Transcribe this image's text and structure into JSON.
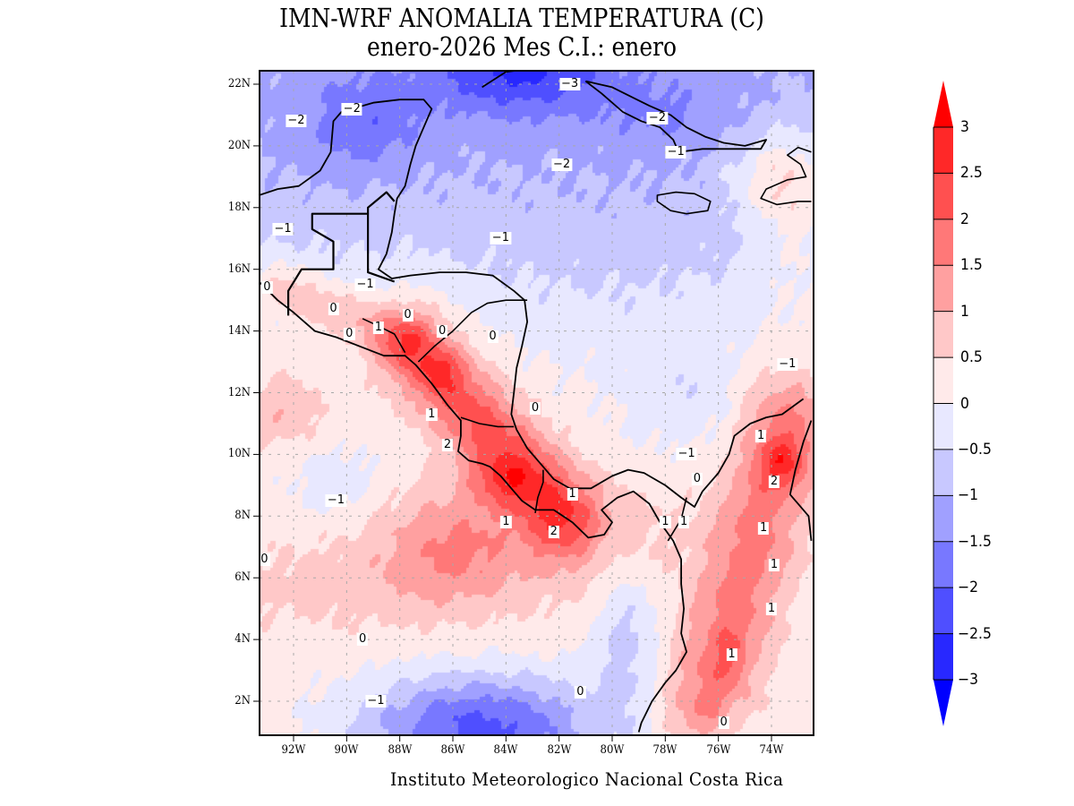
{
  "title": {
    "line1": "IMN-WRF  ANOMALIA TEMPERATURA (C)",
    "line2": "enero-2026 Mes C.I.: enero"
  },
  "credit": "Instituto Meteorologico Nacional Costa Rica",
  "chart_data": {
    "type": "heatmap",
    "title": "IMN-WRF  ANOMALIA TEMPERATURA (C)",
    "subtitle": "enero-2026 Mes C.I.: enero",
    "variable": "Temperature anomaly",
    "units": "C",
    "lon_range": [
      -93.3,
      -72.5
    ],
    "lat_range": [
      1.0,
      22.4
    ],
    "x_ticks": [
      "92W",
      "90W",
      "88W",
      "86W",
      "84W",
      "82W",
      "80W",
      "78W",
      "76W",
      "74W"
    ],
    "x_tick_values": [
      -92,
      -90,
      -88,
      -86,
      -84,
      -82,
      -80,
      -78,
      -76,
      -74
    ],
    "y_ticks": [
      "2N",
      "4N",
      "6N",
      "8N",
      "10N",
      "12N",
      "14N",
      "16N",
      "18N",
      "20N",
      "22N"
    ],
    "y_tick_values": [
      2,
      4,
      6,
      8,
      10,
      12,
      14,
      16,
      18,
      20,
      22
    ],
    "grid": true,
    "colorbar": {
      "levels": [
        -3,
        -2.5,
        -2,
        -1.5,
        -1,
        -0.5,
        0,
        0.5,
        1,
        1.5,
        2,
        2.5,
        3
      ],
      "labels": [
        "3",
        "2.5",
        "2",
        "1.5",
        "1",
        "0.5",
        "0",
        "−0.5",
        "−1",
        "−1.5",
        "−2",
        "−2.5",
        "−3"
      ],
      "colors": [
        "#0000ff",
        "#2828ff",
        "#4f4fff",
        "#7878ff",
        "#a0a0ff",
        "#c8c8ff",
        "#e8e8ff",
        "#ffeaea",
        "#ffc8c8",
        "#ffa0a0",
        "#ff7878",
        "#ff5050",
        "#ff2828",
        "#ff0000"
      ],
      "extend": "both",
      "placement": "right"
    },
    "contour_labels": [
      {
        "text": "−3",
        "lon": -81.6,
        "lat": 22.0
      },
      {
        "text": "−2",
        "lon": -91.9,
        "lat": 20.8
      },
      {
        "text": "−2",
        "lon": -89.8,
        "lat": 21.2
      },
      {
        "text": "−2",
        "lon": -78.3,
        "lat": 20.9
      },
      {
        "text": "−2",
        "lon": -81.9,
        "lat": 19.4
      },
      {
        "text": "−1",
        "lon": -77.6,
        "lat": 19.8
      },
      {
        "text": "−1",
        "lon": -92.4,
        "lat": 17.3
      },
      {
        "text": "−1",
        "lon": -84.2,
        "lat": 17.0
      },
      {
        "text": "−1",
        "lon": -89.3,
        "lat": 15.5
      },
      {
        "text": "−1",
        "lon": -73.4,
        "lat": 12.9
      },
      {
        "text": "−1",
        "lon": -77.2,
        "lat": 10.0
      },
      {
        "text": "−1",
        "lon": -90.4,
        "lat": 8.5
      },
      {
        "text": "−1",
        "lon": -88.9,
        "lat": 2.0
      },
      {
        "text": "0",
        "lon": -93.0,
        "lat": 15.4
      },
      {
        "text": "0",
        "lon": -90.5,
        "lat": 14.7
      },
      {
        "text": "0",
        "lon": -87.7,
        "lat": 14.5
      },
      {
        "text": "0",
        "lon": -89.9,
        "lat": 13.9
      },
      {
        "text": "0",
        "lon": -86.4,
        "lat": 14.0
      },
      {
        "text": "0",
        "lon": -84.5,
        "lat": 13.8
      },
      {
        "text": "0",
        "lon": -82.9,
        "lat": 11.5
      },
      {
        "text": "0",
        "lon": -76.8,
        "lat": 9.2
      },
      {
        "text": "0",
        "lon": -93.1,
        "lat": 6.6
      },
      {
        "text": "0",
        "lon": -89.4,
        "lat": 4.0
      },
      {
        "text": "0",
        "lon": -81.2,
        "lat": 2.3
      },
      {
        "text": "0",
        "lon": -75.8,
        "lat": 1.3
      },
      {
        "text": "1",
        "lon": -88.8,
        "lat": 14.1
      },
      {
        "text": "1",
        "lon": -86.8,
        "lat": 11.3
      },
      {
        "text": "1",
        "lon": -81.5,
        "lat": 8.7
      },
      {
        "text": "1",
        "lon": -84.0,
        "lat": 7.8
      },
      {
        "text": "1",
        "lon": -78.0,
        "lat": 7.8
      },
      {
        "text": "1",
        "lon": -77.3,
        "lat": 7.8
      },
      {
        "text": "1",
        "lon": -74.4,
        "lat": 10.6
      },
      {
        "text": "1",
        "lon": -74.3,
        "lat": 7.6
      },
      {
        "text": "1",
        "lon": -73.9,
        "lat": 6.4
      },
      {
        "text": "1",
        "lon": -74.0,
        "lat": 5.0
      },
      {
        "text": "1",
        "lon": -75.5,
        "lat": 3.5
      },
      {
        "text": "2",
        "lon": -86.2,
        "lat": 10.3
      },
      {
        "text": "2",
        "lon": -82.2,
        "lat": 7.5
      },
      {
        "text": "2",
        "lon": -73.9,
        "lat": 9.1
      }
    ]
  }
}
